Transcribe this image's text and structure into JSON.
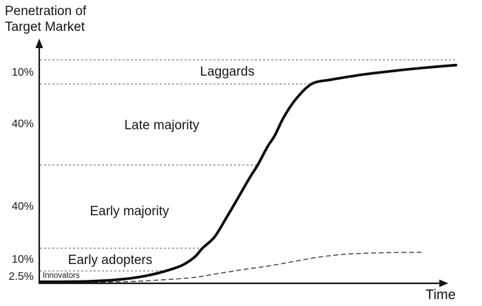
{
  "heading": {
    "line1": "Penetration of",
    "line2": "Target Market"
  },
  "chart_data": {
    "type": "line",
    "title": "Penetration of Target Market",
    "xlabel": "Time",
    "ylabel": "Penetration of Target Market",
    "x_range_time_units": [
      0,
      10.25
    ],
    "y_scale": "cumulative share of target market (%), segment bands stacked to 102.5",
    "grid": "dashed horizontal segment boundaries only",
    "legend": "none",
    "y_axis_labels": [
      "10%",
      "40%",
      "40%",
      "10%",
      "2.5%"
    ],
    "segments": [
      {
        "label": "Innovators",
        "share_pct": 2.5,
        "cumulative_pct": 2.5,
        "axis_label": "2.5%"
      },
      {
        "label": "Early adopters",
        "share_pct": 10,
        "cumulative_pct": 12.5,
        "axis_label": "10%"
      },
      {
        "label": "Early majority",
        "share_pct": 40,
        "cumulative_pct": 52.5,
        "axis_label": "40%"
      },
      {
        "label": "Late majority",
        "share_pct": 40,
        "cumulative_pct": 92.5,
        "axis_label": "40%"
      },
      {
        "label": "Laggards",
        "share_pct": 10,
        "cumulative_pct": 102.5,
        "axis_label": "10%"
      }
    ],
    "boundary_lines": [
      {
        "cumulative_pct": 102.5,
        "t_start": 0,
        "t_end": 10.22
      },
      {
        "cumulative_pct": 92.5,
        "t_start": 0,
        "t_end": 6.69
      },
      {
        "cumulative_pct": 52.5,
        "t_start": 0,
        "t_end": 5.36
      },
      {
        "cumulative_pct": 12.5,
        "t_start": 0,
        "t_end": 3.97
      },
      {
        "cumulative_pct": 2.5,
        "t_start": 0,
        "t_end": 3.05
      }
    ],
    "series": [
      {
        "name": "Cumulative adoption S-curve",
        "style": "solid-thick",
        "points": [
          [
            0,
            0.3
          ],
          [
            1.2,
            0.4
          ],
          [
            2.0,
            0.8
          ],
          [
            2.6,
            1.5
          ],
          [
            3.1,
            2.5
          ],
          [
            3.5,
            5
          ],
          [
            3.8,
            8.5
          ],
          [
            4.0,
            12.5
          ],
          [
            4.3,
            18
          ],
          [
            4.6,
            27.5
          ],
          [
            4.9,
            37.5
          ],
          [
            5.15,
            46
          ],
          [
            5.36,
            52.5
          ],
          [
            5.6,
            61.5
          ],
          [
            5.78,
            67
          ],
          [
            6.0,
            76
          ],
          [
            6.3,
            85
          ],
          [
            6.69,
            92.5
          ],
          [
            7.15,
            94.2
          ],
          [
            7.5,
            95.2
          ],
          [
            8.0,
            96.5
          ],
          [
            8.5,
            97.5
          ],
          [
            9.2,
            98.8
          ],
          [
            9.8,
            99.7
          ],
          [
            10.24,
            100.3
          ]
        ]
      },
      {
        "name": "Secondary adoption curve",
        "style": "dashed-thin",
        "points": [
          [
            0,
            0.1
          ],
          [
            2.0,
            0.3
          ],
          [
            3.0,
            0.7
          ],
          [
            3.8,
            1.2
          ],
          [
            4.4,
            2.0
          ],
          [
            5.0,
            3.1
          ],
          [
            5.6,
            4.6
          ],
          [
            6.2,
            6.5
          ],
          [
            6.8,
            8.4
          ],
          [
            7.4,
            9.7
          ],
          [
            8.0,
            10.3
          ],
          [
            8.7,
            10.6
          ],
          [
            9.4,
            10.7
          ]
        ]
      }
    ]
  }
}
